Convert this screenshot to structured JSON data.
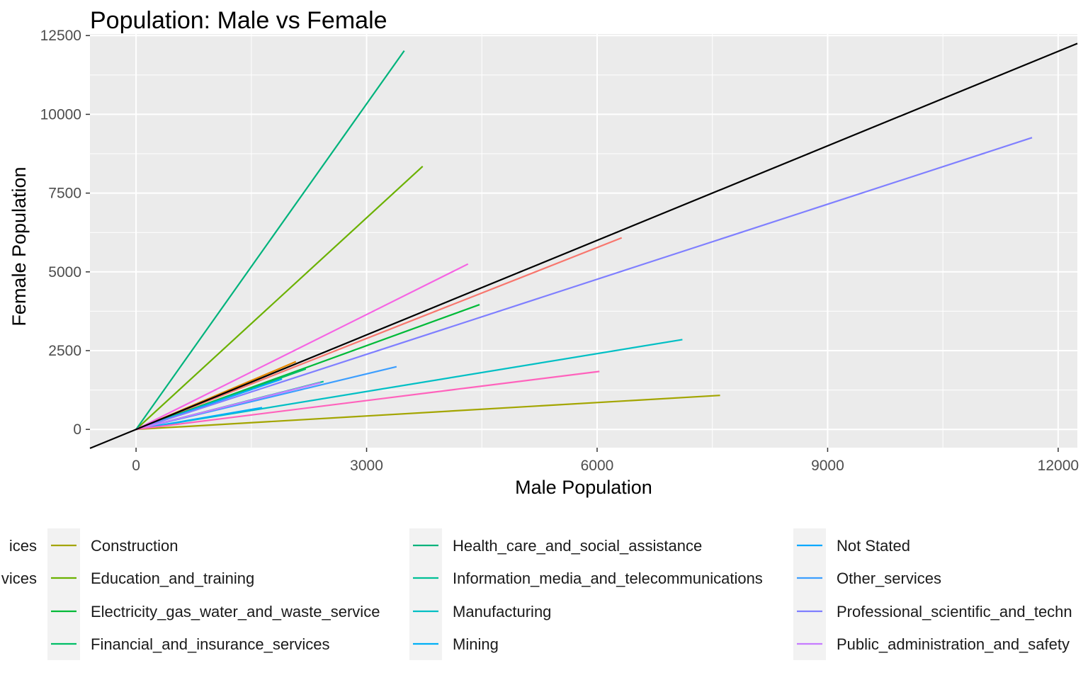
{
  "chart_data": {
    "type": "line",
    "title": "Population: Male vs Female",
    "xlabel": "Male Population",
    "ylabel": "Female Population",
    "xlim": [
      -600,
      12250
    ],
    "ylim": [
      -580,
      12550
    ],
    "x_ticks": [
      0,
      3000,
      6000,
      9000,
      12000
    ],
    "y_ticks": [
      0,
      2500,
      5000,
      7500,
      10000,
      12500
    ],
    "grid": true,
    "legend_position": "bottom",
    "reference_line": {
      "name": "",
      "color": "#000000",
      "x": [
        -600,
        12250
      ],
      "y": [
        -600,
        12250
      ]
    },
    "series": [
      {
        "name": "",
        "color": "#F8766D",
        "x": [
          0,
          6320
        ],
        "y": [
          0,
          6080
        ]
      },
      {
        "name": "",
        "color": "#E58700",
        "x": [
          0,
          2080
        ],
        "y": [
          0,
          2150
        ]
      },
      {
        "name": "Construction",
        "color": "#A3A500",
        "x": [
          0,
          7600
        ],
        "y": [
          0,
          1080
        ]
      },
      {
        "name": "Education_and_training",
        "color": "#6BB100",
        "x": [
          0,
          3730
        ],
        "y": [
          0,
          8350
        ]
      },
      {
        "name": "Electricity_gas_water_and_waste_service",
        "color": "#00BA38",
        "x": [
          0,
          4470
        ],
        "y": [
          0,
          3960
        ]
      },
      {
        "name": "Financial_and_insurance_services",
        "color": "#00BE67",
        "x": [
          0,
          2210
        ],
        "y": [
          0,
          1920
        ]
      },
      {
        "name": "Health_care_and_social_assistance",
        "color": "#00B37C",
        "x": [
          0,
          3490
        ],
        "y": [
          0,
          12020
        ]
      },
      {
        "name": "Information_media_and_telecommunications",
        "color": "#00BF96",
        "x": [
          0,
          2440
        ],
        "y": [
          0,
          1520
        ]
      },
      {
        "name": "Manufacturing",
        "color": "#00BFC4",
        "x": [
          0,
          7110
        ],
        "y": [
          0,
          2850
        ]
      },
      {
        "name": "Mining",
        "color": "#00B0F6",
        "x": [
          0,
          1640
        ],
        "y": [
          0,
          690
        ]
      },
      {
        "name": "Not Stated",
        "color": "#00A9FF",
        "x": [
          0,
          1900
        ],
        "y": [
          0,
          1600
        ]
      },
      {
        "name": "Other_services",
        "color": "#3C9EFF",
        "x": [
          0,
          3390
        ],
        "y": [
          0,
          1990
        ]
      },
      {
        "name": "Professional_scientific_and_techn",
        "color": "#7F7FFF",
        "x": [
          0,
          11660
        ],
        "y": [
          0,
          9260
        ]
      },
      {
        "name": "Public_administration_and_safety",
        "color": "#C77CFF",
        "x": [
          0,
          2400
        ],
        "y": [
          0,
          1480
        ]
      },
      {
        "name": "",
        "color": "#F564E3",
        "x": [
          0,
          4320
        ],
        "y": [
          0,
          5250
        ]
      },
      {
        "name": "",
        "color": "#FF62BC",
        "x": [
          0,
          6030
        ],
        "y": [
          0,
          1840
        ]
      }
    ],
    "legend": {
      "clipped_entries": [
        {
          "label": "ices",
          "color": "#F8766D"
        },
        {
          "label": "vices",
          "color": "#E58700"
        }
      ],
      "entries": [
        {
          "label": "Construction",
          "color": "#A3A500"
        },
        {
          "label": "Education_and_training",
          "color": "#6BB100"
        },
        {
          "label": "Electricity_gas_water_and_waste_service",
          "color": "#00BA38"
        },
        {
          "label": "Financial_and_insurance_services",
          "color": "#00BE67"
        },
        {
          "label": "Health_care_and_social_assistance",
          "color": "#00B37C"
        },
        {
          "label": "Information_media_and_telecommunications",
          "color": "#00BF96"
        },
        {
          "label": "Manufacturing",
          "color": "#00BFC4"
        },
        {
          "label": "Mining",
          "color": "#00B0F6"
        },
        {
          "label": "Not Stated",
          "color": "#00A9FF"
        },
        {
          "label": "Other_services",
          "color": "#3C9EFF"
        },
        {
          "label": "Professional_scientific_and_techn",
          "color": "#7F7FFF"
        },
        {
          "label": "Public_administration_and_safety",
          "color": "#C77CFF"
        }
      ]
    }
  }
}
